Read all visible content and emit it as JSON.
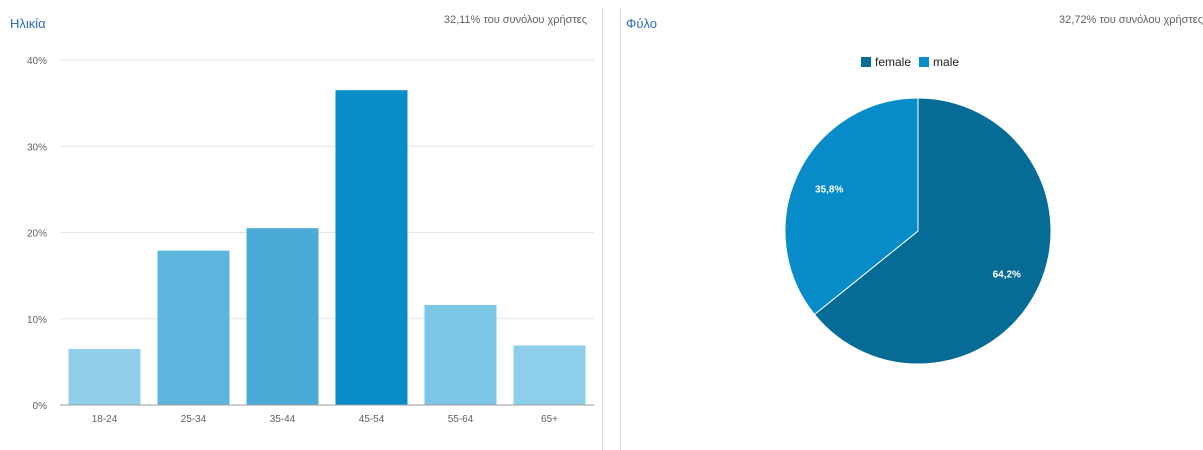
{
  "age_panel": {
    "title": "Ηλικία",
    "subtitle": "32,11% του συνόλου χρήστες"
  },
  "gender_panel": {
    "title": "Φύλο",
    "subtitle": "32,72% του συνόλου χρήστες"
  },
  "colors": {
    "title": "#2a6db5",
    "female": "#066c95",
    "male": "#078cc9",
    "grid": "#e6e6e6",
    "axis": "#9e9e9e"
  },
  "chart_data": [
    {
      "type": "bar",
      "categories": [
        "18-24",
        "25-34",
        "35-44",
        "45-54",
        "55-64",
        "65+"
      ],
      "values": [
        6.5,
        17.9,
        20.5,
        36.5,
        11.6,
        6.9
      ],
      "bar_colors": [
        "#90cfe9",
        "#5bb5dd",
        "#4aabd8",
        "#078cc9",
        "#7cc6e5",
        "#8dcfea"
      ],
      "yticks": [
        "0%",
        "10%",
        "20%",
        "30%",
        "40%"
      ],
      "ylim": [
        0,
        40
      ],
      "title": "Ηλικία",
      "grid": true
    },
    {
      "type": "pie",
      "legend": [
        "female",
        "male"
      ],
      "slices": [
        {
          "label": "female",
          "value": 64.2,
          "value_label": "64,2%",
          "color": "#066c95"
        },
        {
          "label": "male",
          "value": 35.8,
          "value_label": "35,8%",
          "color": "#078cc9"
        }
      ],
      "legend_position": "top",
      "title": "Φύλο"
    }
  ]
}
